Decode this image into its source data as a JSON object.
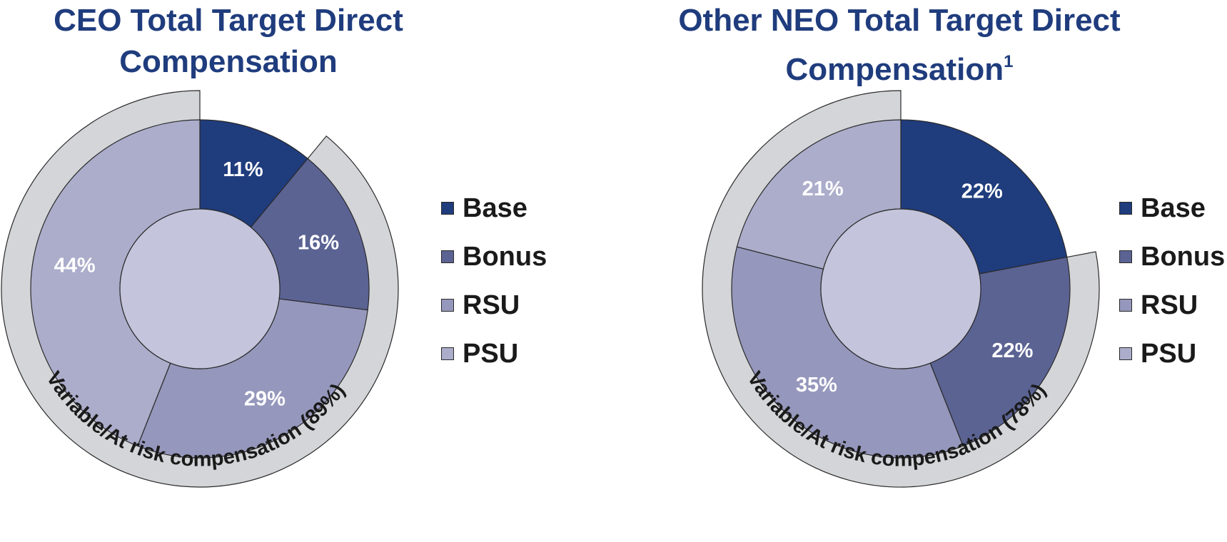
{
  "colors": {
    "title": "#1f3c7d",
    "base": "#1f3c7d",
    "bonus": "#5b6393",
    "rsu": "#9597bc",
    "psu": "#abadcb",
    "center": "#c4c5dc",
    "outer_band": "#d4d5d8",
    "stroke": "#2a2a2a"
  },
  "legend": [
    {
      "label": "Base",
      "color": "#1f3c7d"
    },
    {
      "label": "Bonus",
      "color": "#5b6393"
    },
    {
      "label": "RSU",
      "color": "#9597bc"
    },
    {
      "label": "PSU",
      "color": "#abadcb"
    }
  ],
  "chart_data": [
    {
      "type": "pie",
      "title": "CEO Total Target Direct Compensation",
      "title_superscript": "",
      "categories": [
        "Base",
        "Bonus",
        "RSU",
        "PSU"
      ],
      "values": [
        11,
        16,
        29,
        44
      ],
      "value_labels": [
        "11%",
        "16%",
        "29%",
        "44%"
      ],
      "annotation": "Variable/At risk compensation (89%)",
      "annotation_value": 89
    },
    {
      "type": "pie",
      "title": "Other NEO Total Target Direct Compensation",
      "title_superscript": "1",
      "categories": [
        "Base",
        "Bonus",
        "RSU",
        "PSU"
      ],
      "values": [
        22,
        22,
        35,
        21
      ],
      "value_labels": [
        "22%",
        "22%",
        "35%",
        "21%"
      ],
      "annotation": "Variable/At risk compensation (78%)",
      "annotation_value": 78
    }
  ]
}
